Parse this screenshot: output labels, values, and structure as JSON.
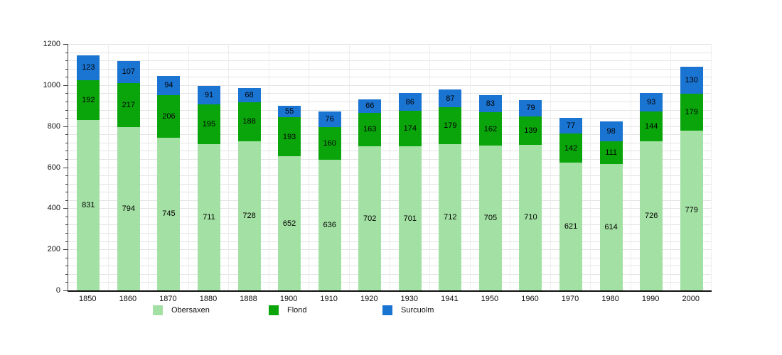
{
  "chart_data": {
    "type": "bar",
    "stacked": true,
    "title": "",
    "xlabel": "",
    "ylabel": "",
    "categories": [
      "1850",
      "1860",
      "1870",
      "1880",
      "1888",
      "1900",
      "1910",
      "1920",
      "1930",
      "1941",
      "1950",
      "1960",
      "1970",
      "1980",
      "1990",
      "2000"
    ],
    "series": [
      {
        "name": "Obersaxen",
        "color": "#a3e0a3",
        "values": [
          831,
          794,
          745,
          711,
          728,
          652,
          636,
          702,
          701,
          712,
          705,
          710,
          621,
          614,
          726,
          779
        ]
      },
      {
        "name": "Flond",
        "color": "#0aa50a",
        "values": [
          192,
          217,
          206,
          195,
          188,
          193,
          160,
          163,
          174,
          179,
          162,
          139,
          142,
          111,
          144,
          179
        ]
      },
      {
        "name": "Surcuolm",
        "color": "#1a74d2",
        "values": [
          123,
          107,
          94,
          91,
          68,
          55,
          76,
          66,
          86,
          87,
          83,
          79,
          77,
          98,
          93,
          130
        ]
      }
    ],
    "ylim": [
      0,
      1200
    ],
    "ytick_labels": [
      "0",
      "200",
      "400",
      "600",
      "800",
      "1000",
      "1200"
    ],
    "ytick_step": 200,
    "grid_minor_step": 40,
    "grid": true,
    "legend_position": "bottom",
    "value_labels_inside_bars": true
  },
  "colors": {
    "background": "#ffffff",
    "gridline_h": "#e4e4e4",
    "gridline_v": "#ededed",
    "axis": "#111111",
    "label_text": "#111111"
  }
}
